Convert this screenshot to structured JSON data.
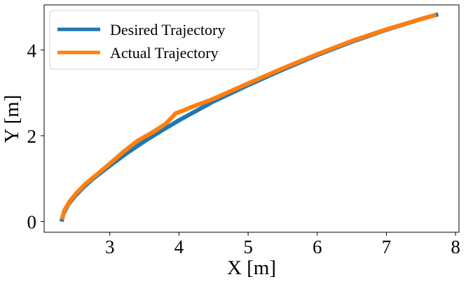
{
  "chart_data": {
    "type": "line",
    "xlabel": "X [m]",
    "ylabel": "Y [m]",
    "xlim": [
      2.05,
      8.05
    ],
    "ylim": [
      -0.25,
      5.05
    ],
    "xticks": [
      3,
      4,
      5,
      6,
      7,
      8
    ],
    "yticks": [
      0,
      2,
      4
    ],
    "grid": false,
    "legend_position": "top-left",
    "colors": {
      "desired": "#1f77b4",
      "actual": "#ff7f0e"
    },
    "series": [
      {
        "name": "Desired Trajectory",
        "x": [
          2.3,
          2.33,
          2.4,
          2.5,
          2.62,
          2.75,
          3.0,
          3.25,
          3.5,
          3.75,
          4.0,
          4.5,
          5.0,
          5.5,
          6.0,
          6.5,
          7.0,
          7.5,
          7.75
        ],
        "y": [
          0.0,
          0.18,
          0.4,
          0.6,
          0.8,
          0.99,
          1.3,
          1.6,
          1.87,
          2.12,
          2.36,
          2.8,
          3.18,
          3.54,
          3.88,
          4.19,
          4.47,
          4.72,
          4.83
        ]
      },
      {
        "name": "Actual Trajectory",
        "x": [
          2.31,
          2.34,
          2.42,
          2.52,
          2.65,
          2.8,
          3.0,
          3.2,
          3.4,
          3.6,
          3.8,
          3.9,
          3.95,
          4.05,
          4.2,
          4.5,
          5.0,
          5.5,
          6.0,
          6.5,
          7.0,
          7.5,
          7.72
        ],
        "y": [
          0.05,
          0.25,
          0.47,
          0.67,
          0.88,
          1.08,
          1.35,
          1.63,
          1.88,
          2.06,
          2.27,
          2.43,
          2.52,
          2.58,
          2.68,
          2.86,
          3.22,
          3.57,
          3.9,
          4.21,
          4.48,
          4.72,
          4.82
        ]
      }
    ]
  }
}
